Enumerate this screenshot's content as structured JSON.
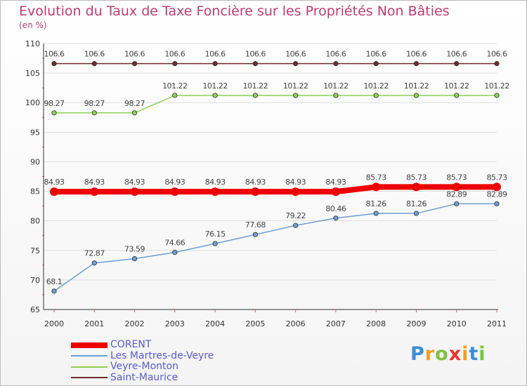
{
  "chart_data": {
    "type": "line",
    "title": "Evolution du Taux de Taxe Foncière sur les Propriétés Non Bâties",
    "ylabel": "(en %)",
    "xlabel": "",
    "ylim": [
      65,
      110
    ],
    "yticks": [
      65,
      70,
      75,
      80,
      85,
      90,
      95,
      100,
      105,
      110
    ],
    "categories": [
      "2000",
      "2001",
      "2002",
      "2003",
      "2004",
      "2005",
      "2006",
      "2007",
      "2008",
      "2009",
      "2010",
      "2011"
    ],
    "series": [
      {
        "name": "Saint-Maurice",
        "color": "#6e2b2e",
        "values": [
          106.6,
          106.6,
          106.6,
          106.6,
          106.6,
          106.6,
          106.6,
          106.6,
          106.6,
          106.6,
          106.6,
          106.6
        ],
        "labels": [
          "106.6",
          "106.6",
          "106.6",
          "106.6",
          "106.6",
          "106.6",
          "106.6",
          "106.6",
          "106.6",
          "106.6",
          "106.6",
          "106.6"
        ]
      },
      {
        "name": "Veyre-Monton",
        "color": "#8fd14f",
        "values": [
          98.27,
          98.27,
          98.27,
          101.22,
          101.22,
          101.22,
          101.22,
          101.22,
          101.22,
          101.22,
          101.22,
          101.22
        ],
        "labels": [
          "98.27",
          "98.27",
          "98.27",
          "101.22",
          "101.22",
          "101.22",
          "101.22",
          "101.22",
          "101.22",
          "101.22",
          "101.22",
          "101.22"
        ]
      },
      {
        "name": "CORENT",
        "color": "#ee0000",
        "values": [
          84.93,
          84.93,
          84.93,
          84.93,
          84.93,
          84.93,
          84.93,
          84.93,
          85.73,
          85.73,
          85.73,
          85.73
        ],
        "labels": [
          "84.93",
          "84.93",
          "84.93",
          "84.93",
          "84.93",
          "84.93",
          "84.93",
          "84.93",
          "85.73",
          "85.73",
          "85.73",
          "85.73"
        ]
      },
      {
        "name": "Les Martres-de-Veyre",
        "color": "#6a9fd4",
        "values": [
          68.1,
          72.87,
          73.59,
          74.66,
          76.15,
          77.68,
          79.22,
          80.46,
          81.26,
          81.26,
          82.89,
          82.89
        ],
        "labels": [
          "68.1",
          "72.87",
          "73.59",
          "74.66",
          "76.15",
          "77.68",
          "79.22",
          "80.46",
          "81.26",
          "81.26",
          "82.89",
          "82.89"
        ]
      }
    ],
    "legend": [
      "CORENT",
      "Les Martres-de-Veyre",
      "Veyre-Monton",
      "Saint-Maurice"
    ]
  },
  "brand": {
    "letters": [
      "P",
      "r",
      "o",
      "x",
      "i",
      "t",
      "i"
    ],
    "colors": [
      "#3c8fd6",
      "#f0a020",
      "#7cc242",
      "#e8342e",
      "#f0a020",
      "#3c8fd6",
      "#7cc242"
    ]
  }
}
